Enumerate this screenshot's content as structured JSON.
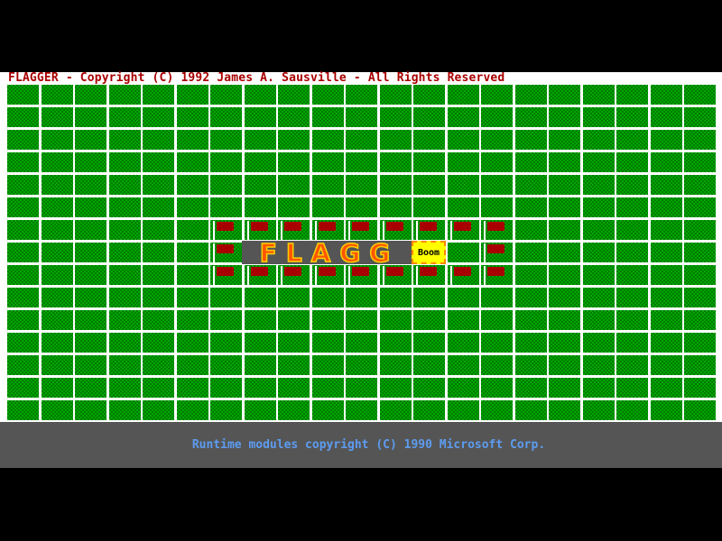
{
  "header": {
    "title": "FLAGGER - Copyright (C) 1992 James A. Sausville - All Rights Reserved"
  },
  "board": {
    "rows": 15,
    "cols": 21,
    "flags": [
      [
        6,
        6
      ],
      [
        6,
        7
      ],
      [
        6,
        8
      ],
      [
        6,
        9
      ],
      [
        6,
        10
      ],
      [
        6,
        11
      ],
      [
        6,
        12
      ],
      [
        6,
        13
      ],
      [
        6,
        14
      ],
      [
        7,
        6
      ],
      [
        7,
        14
      ],
      [
        8,
        6
      ],
      [
        8,
        7
      ],
      [
        8,
        8
      ],
      [
        8,
        9
      ],
      [
        8,
        10
      ],
      [
        8,
        11
      ],
      [
        8,
        12
      ],
      [
        8,
        13
      ],
      [
        8,
        14
      ]
    ],
    "colors": {
      "grass": "#00a800",
      "flag": "#a80000",
      "pole": "#ffffff"
    }
  },
  "banner": {
    "text": "FLAGG",
    "boom": "Boom"
  },
  "footer": {
    "text": "Runtime modules copyright (C) 1990 Microsoft Corp."
  }
}
